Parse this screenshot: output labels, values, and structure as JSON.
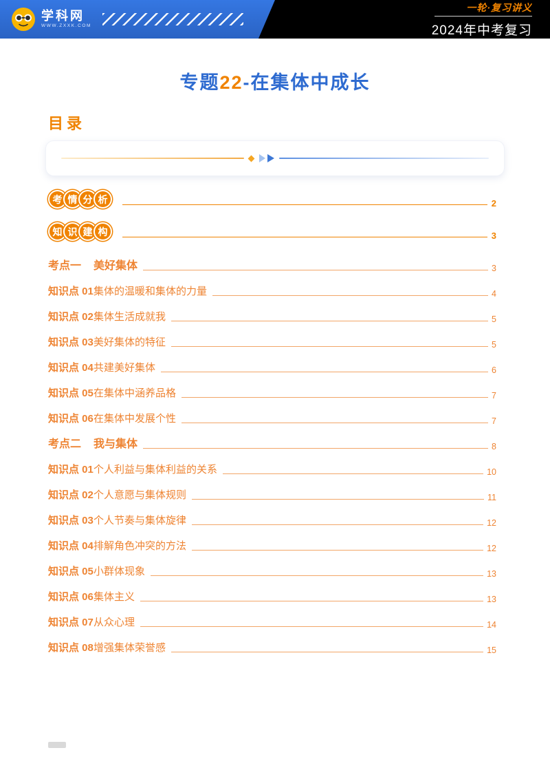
{
  "header": {
    "brand_name": "学科网",
    "brand_url": "WWW.ZXXK.COM",
    "series_label": "一轮·复习讲义",
    "course_label": "2024年中考复习"
  },
  "title": {
    "prefix": "专题",
    "number": "22",
    "separator": "-",
    "name": "在集体中成长"
  },
  "toc": {
    "heading": "目录",
    "sections": [
      {
        "label": "考情分析",
        "page": "2"
      },
      {
        "label": "知识建构",
        "page": "3"
      }
    ],
    "entries": [
      {
        "label": "考点一",
        "title": "美好集体",
        "page": "3"
      },
      {
        "label": "知识点 01",
        "title": "集体的温暖和集体的力量",
        "page": "4"
      },
      {
        "label": "知识点 02",
        "title": "集体生活成就我",
        "page": "5"
      },
      {
        "label": "知识点 03",
        "title": "美好集体的特征",
        "page": "5"
      },
      {
        "label": "知识点 04",
        "title": "共建美好集体",
        "page": "6"
      },
      {
        "label": "知识点 05",
        "title": "在集体中涵养品格",
        "page": "7"
      },
      {
        "label": "知识点 06",
        "title": "在集体中发展个性",
        "page": "7"
      },
      {
        "label": "考点二",
        "title": "我与集体",
        "page": "8"
      },
      {
        "label": "知识点 01",
        "title": "个人利益与集体利益的关系",
        "page": "10"
      },
      {
        "label": "知识点 02",
        "title": "个人意愿与集体规则",
        "page": "11"
      },
      {
        "label": "知识点 03",
        "title": "个人节奏与集体旋律",
        "page": "12"
      },
      {
        "label": "知识点 04",
        "title": "排解角色冲突的方法",
        "page": "12"
      },
      {
        "label": "知识点 05",
        "title": "小群体现象",
        "page": "13"
      },
      {
        "label": "知识点 06",
        "title": "集体主义",
        "page": "13"
      },
      {
        "label": "知识点 07",
        "title": "从众心理",
        "page": "14"
      },
      {
        "label": "知识点 08",
        "title": "增强集体荣誉感",
        "page": "15"
      }
    ]
  },
  "colors": {
    "accent_orange": "#f08300",
    "toc_orange": "#ee8433",
    "title_blue": "#2e6bd0",
    "banner_blue": "#2f6fd8"
  }
}
